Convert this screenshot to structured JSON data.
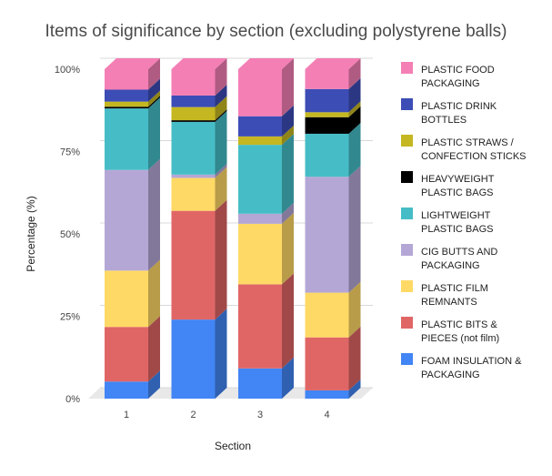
{
  "chart_data": {
    "type": "bar",
    "stacked": true,
    "normalized": true,
    "style": "3d",
    "title": "Items of significance by section (excluding polystyrene balls)",
    "xlabel": "Section",
    "ylabel": "Percentage (%)",
    "ylim": [
      0,
      100
    ],
    "y_ticks": [
      "0%",
      "25%",
      "50%",
      "75%",
      "100%"
    ],
    "categories": [
      "1",
      "2",
      "3",
      "4"
    ],
    "legend_position": "right",
    "series": [
      {
        "name": "FOAM INSULATION & PACKAGING",
        "color": "#4285f4",
        "values": [
          5,
          24,
          9,
          2.5
        ]
      },
      {
        "name": "PLASTIC BITS & PIECES (not film)",
        "color": "#e06666",
        "values": [
          16,
          33,
          25,
          16
        ]
      },
      {
        "name": "PLASTIC FILM REMNANTS",
        "color": "#ffd966",
        "values": [
          16.5,
          10,
          18,
          13.5
        ]
      },
      {
        "name": "CIG BUTTS AND PACKAGING",
        "color": "#b4a7d6",
        "values": [
          29.5,
          1,
          3,
          35
        ]
      },
      {
        "name": "LIGHTWEIGHT PLASTIC BAGS",
        "color": "#46bdc6",
        "values": [
          18,
          16,
          20.5,
          13
        ]
      },
      {
        "name": "HEAVYWEIGHT PLASTIC BAGS",
        "color": "#000000",
        "values": [
          0.5,
          0.5,
          0,
          5
        ]
      },
      {
        "name": "PLASTIC STRAWS / CONFECTION STICKS",
        "color": "#c5b721",
        "values": [
          1.5,
          4,
          2.5,
          1.5
        ]
      },
      {
        "name": "PLASTIC DRINK BOTTLES",
        "color": "#3c4db5",
        "values": [
          3.5,
          3.5,
          6,
          7
        ]
      },
      {
        "name": "PLASTIC FOOD PACKAGING",
        "color": "#f47fb5",
        "values": [
          6,
          8,
          14,
          6
        ]
      }
    ],
    "legend_lines": [
      [
        "PLASTIC FOOD",
        "PACKAGING"
      ],
      [
        "PLASTIC DRINK",
        "BOTTLES"
      ],
      [
        "PLASTIC STRAWS /",
        "CONFECTION STICKS"
      ],
      [
        "HEAVYWEIGHT",
        "PLASTIC BAGS"
      ],
      [
        "LIGHTWEIGHT",
        "PLASTIC BAGS"
      ],
      [
        "CIG BUTTS AND",
        "PACKAGING"
      ],
      [
        "PLASTIC FILM",
        "REMNANTS"
      ],
      [
        "PLASTIC BITS &",
        "PIECES (not film)"
      ],
      [
        "FOAM INSULATION &",
        "PACKAGING"
      ]
    ]
  }
}
